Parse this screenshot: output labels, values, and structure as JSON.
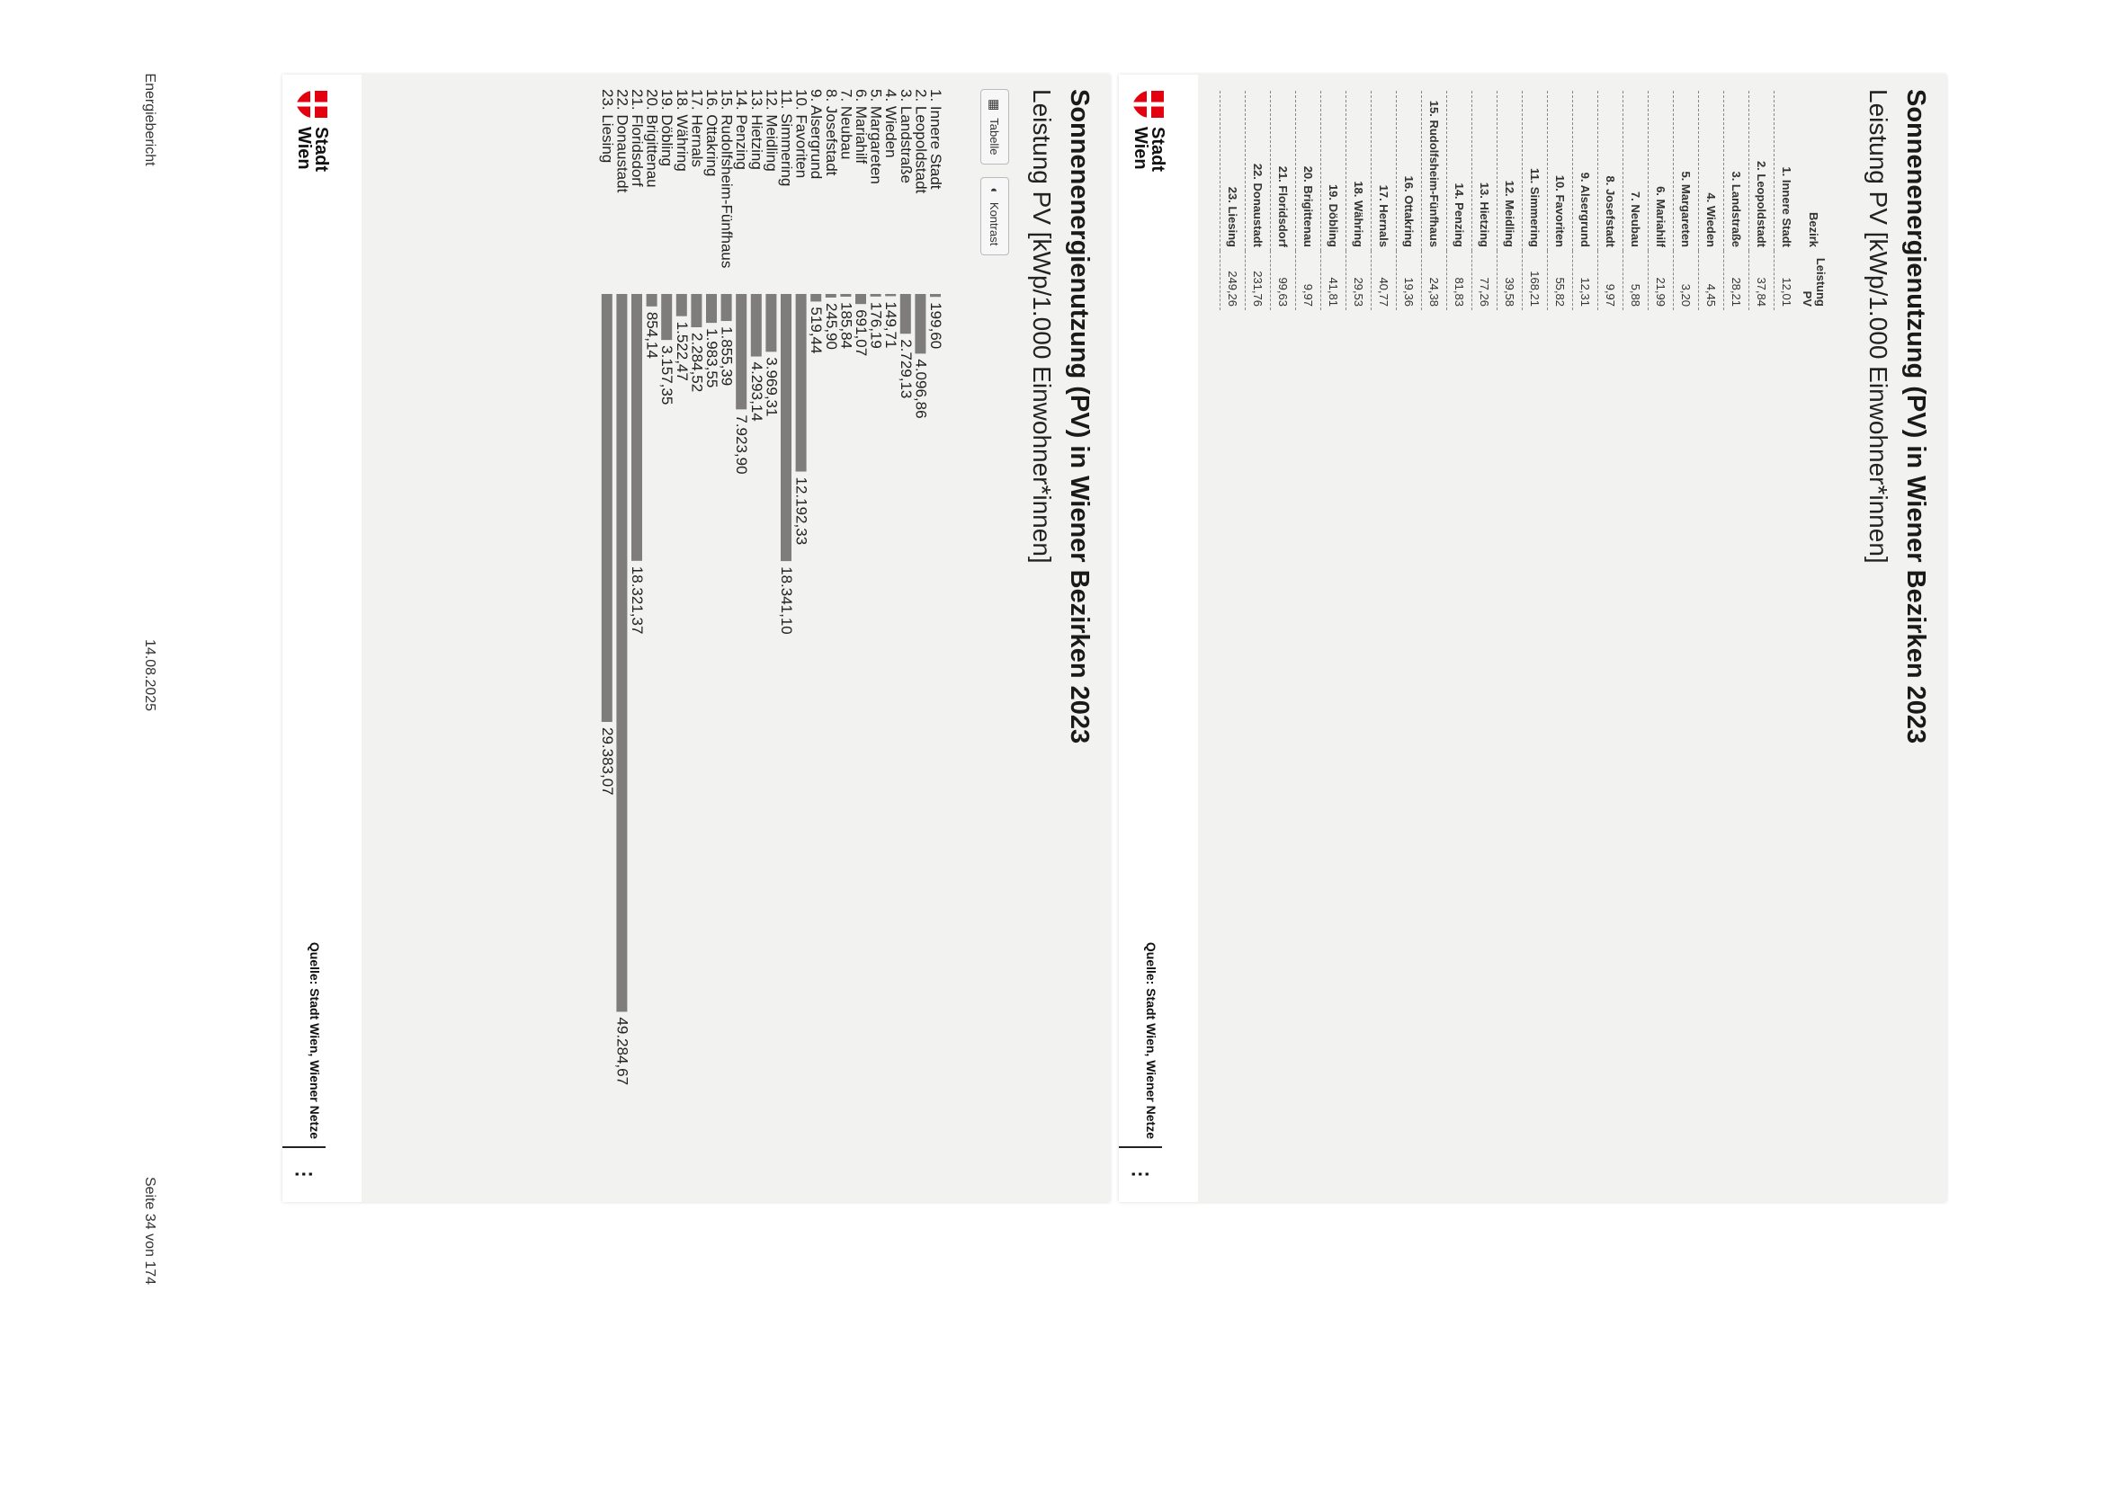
{
  "page": {
    "doc_title": "Energiebericht",
    "date": "14.08.2025",
    "page_number": "Seite 34 von 174"
  },
  "table_card": {
    "title": "Sonnenenergienutzung (PV) in Wiener Bezirken 2023",
    "subtitle": "Leistung PV [kWp/1.000 Einwohner*innen]",
    "header_district": "Bezirk",
    "header_value": "Leistung PV",
    "rows": [
      {
        "district": "1. Innere Stadt",
        "value": "12,01"
      },
      {
        "district": "2. Leopoldstadt",
        "value": "37,84"
      },
      {
        "district": "3. Landstraße",
        "value": "28,21"
      },
      {
        "district": "4. Wieden",
        "value": "4,45"
      },
      {
        "district": "5. Margareten",
        "value": "3,20"
      },
      {
        "district": "6. Mariahilf",
        "value": "21,99"
      },
      {
        "district": "7. Neubau",
        "value": "5,88"
      },
      {
        "district": "8. Josefstadt",
        "value": "9,97"
      },
      {
        "district": "9. Alsergrund",
        "value": "12,31"
      },
      {
        "district": "10. Favoriten",
        "value": "55,82"
      },
      {
        "district": "11. Simmering",
        "value": "168,21"
      },
      {
        "district": "12. Meidling",
        "value": "39,58"
      },
      {
        "district": "13. Hietzing",
        "value": "77,26"
      },
      {
        "district": "14. Penzing",
        "value": "81,83"
      },
      {
        "district": "15. Rudolfsheim-Fünfhaus",
        "value": "24,38"
      },
      {
        "district": "16. Ottakring",
        "value": "19,36"
      },
      {
        "district": "17. Hernals",
        "value": "40,77"
      },
      {
        "district": "18. Währing",
        "value": "29,53"
      },
      {
        "district": "19. Döbling",
        "value": "41,81"
      },
      {
        "district": "20. Brigittenau",
        "value": "9,97"
      },
      {
        "district": "21. Floridsdorf",
        "value": "99,63"
      },
      {
        "district": "22. Donaustadt",
        "value": "231,76"
      },
      {
        "district": "23. Liesing",
        "value": "249,26"
      }
    ],
    "logo_text": "Stadt Wien",
    "source": "Quelle: Stadt Wien, Wiener Netze",
    "menu": "⋮"
  },
  "chart_card": {
    "title": "Sonnenenergienutzung (PV) in Wiener Bezirken 2023",
    "subtitle": "Leistung PV [kWp/1.000 Einwohner*innen]",
    "btn_table": "Tabelle",
    "btn_contrast": "Kontrast",
    "logo_text": "Stadt Wien",
    "source": "Quelle: Stadt Wien, Wiener Netze",
    "menu": "⋮"
  },
  "colors": {
    "bar": "#7f7d7b",
    "card_bg": "#f2f2f1",
    "logo_red": "#e3000f"
  },
  "chart_data": {
    "type": "bar",
    "orientation": "horizontal",
    "title": "Sonnenenergienutzung (PV) in Wiener Bezirken 2023",
    "ylabel": "Leistung PV [kWp/1.000 Einwohner*innen]",
    "xlim": [
      0,
      50000
    ],
    "categories": [
      "1. Innere Stadt",
      "2. Leopoldstadt",
      "3. Landstraße",
      "4. Wieden",
      "5. Margareten",
      "6. Mariahilf",
      "7. Neubau",
      "8. Josefstadt",
      "9. Alsergrund",
      "10. Favoriten",
      "11. Simmering",
      "12. Meidling",
      "13. Hietzing",
      "14. Penzing",
      "15. Rudolfsheim-Fünfhaus",
      "16. Ottakring",
      "17. Hernals",
      "18. Währing",
      "19. Döbling",
      "20. Brigittenau",
      "21. Floridsdorf",
      "22. Donaustadt",
      "23. Liesing"
    ],
    "values": [
      199.6,
      4096.86,
      2729.13,
      149.71,
      176.19,
      691.07,
      185.84,
      245.9,
      519.44,
      12192.33,
      18341.1,
      3969.31,
      4293.14,
      7923.9,
      1855.39,
      1983.55,
      2284.52,
      1522.47,
      3157.35,
      854.14,
      18321.37,
      49284.67,
      29383.07
    ],
    "labels": [
      "199,60",
      "4.096,86",
      "2.729,13",
      "149,71",
      "176,19",
      "691,07",
      "185,84",
      "245,90",
      "519,44",
      "12.192,33",
      "18.341,10",
      "3.969,31",
      "4.293,14",
      "7.923,90",
      "1.855,39",
      "1.983,55",
      "2.284,52",
      "1.522,47",
      "3.157,35",
      "854,14",
      "18.321,37",
      "49.284,67",
      "29.383,07"
    ]
  }
}
